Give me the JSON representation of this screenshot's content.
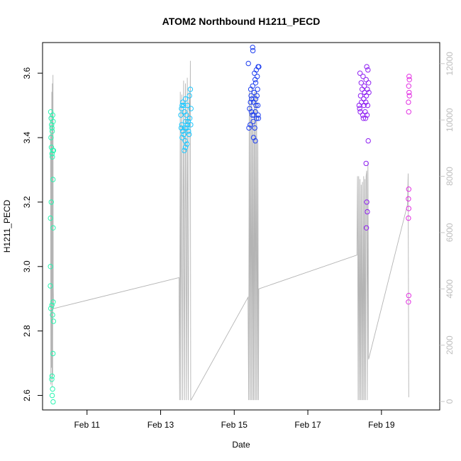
{
  "chart_data": {
    "type": "scatter",
    "title": "ATOM2 Northbound H1211_PECD",
    "xlabel": "Date",
    "ylabel": "H1211_PECD",
    "xlim": [
      "2025-02-09 19:00",
      "2025-02-20 14:00"
    ],
    "ylim_left": [
      2.555,
      3.695
    ],
    "ylim_right": [
      -300,
      12750
    ],
    "x_ticks": [
      {
        "date": "2025-02-11",
        "label": "Feb 11"
      },
      {
        "date": "2025-02-13",
        "label": "Feb 13"
      },
      {
        "date": "2025-02-15",
        "label": "Feb 15"
      },
      {
        "date": "2025-02-17",
        "label": "Feb 17"
      },
      {
        "date": "2025-02-19",
        "label": "Feb 19"
      }
    ],
    "y_ticks_left": [
      "2.6",
      "2.8",
      "3.0",
      "3.2",
      "3.4",
      "3.6"
    ],
    "y_ticks_right": [
      "0",
      "2000",
      "4000",
      "6000",
      "8000",
      "10000",
      "12000"
    ],
    "grid": false,
    "legend": "none",
    "colors": {
      "right_axis": "#c8c8c8",
      "line": "#b4b4b4",
      "points": [
        "#29f5b1",
        "#1ec8ff",
        "#1e3ff0",
        "#8f1ff2",
        "#e22fe2"
      ]
    },
    "clusters": [
      {
        "color_index": 0,
        "points": [
          [
            "2025-02-10 00:18",
            3.48
          ],
          [
            "2025-02-10 00:36",
            3.46
          ],
          [
            "2025-02-10 00:54",
            3.44
          ],
          [
            "2025-02-10 01:06",
            3.43
          ],
          [
            "2025-02-10 01:18",
            3.42
          ],
          [
            "2025-02-10 00:30",
            3.4
          ],
          [
            "2025-02-10 00:48",
            3.37
          ],
          [
            "2025-02-10 01:12",
            3.35
          ],
          [
            "2025-02-10 01:24",
            3.34
          ],
          [
            "2025-02-10 01:42",
            3.36
          ],
          [
            "2025-02-10 02:06",
            3.36
          ],
          [
            "2025-02-10 01:36",
            3.47
          ],
          [
            "2025-02-10 01:54",
            3.45
          ],
          [
            "2025-02-10 01:48",
            3.27
          ],
          [
            "2025-02-10 00:42",
            3.2
          ],
          [
            "2025-02-10 00:12",
            3.15
          ],
          [
            "2025-02-10 01:54",
            3.12
          ],
          [
            "2025-02-10 00:12",
            3.0
          ],
          [
            "2025-02-10 00:06",
            2.94
          ],
          [
            "2025-02-10 00:24",
            2.87
          ],
          [
            "2025-02-10 01:06",
            2.88
          ],
          [
            "2025-02-10 01:30",
            2.85
          ],
          [
            "2025-02-10 01:54",
            2.89
          ],
          [
            "2025-02-10 02:06",
            2.83
          ],
          [
            "2025-02-10 01:48",
            2.73
          ],
          [
            "2025-02-10 01:12",
            2.66
          ],
          [
            "2025-02-10 01:00",
            2.65
          ],
          [
            "2025-02-10 01:30",
            2.62
          ],
          [
            "2025-02-10 01:18",
            2.6
          ],
          [
            "2025-02-10 01:54",
            2.58
          ]
        ]
      },
      {
        "color_index": 1,
        "points": [
          [
            "2025-02-13 13:12",
            3.47
          ],
          [
            "2025-02-13 13:36",
            3.49
          ],
          [
            "2025-02-13 14:00",
            3.5
          ],
          [
            "2025-02-13 14:24",
            3.51
          ],
          [
            "2025-02-13 15:00",
            3.5
          ],
          [
            "2025-02-13 15:36",
            3.48
          ],
          [
            "2025-02-13 16:12",
            3.52
          ],
          [
            "2025-02-13 16:48",
            3.47
          ],
          [
            "2025-02-13 17:24",
            3.5
          ],
          [
            "2025-02-13 18:00",
            3.45
          ],
          [
            "2025-02-13 18:48",
            3.53
          ],
          [
            "2025-02-13 19:24",
            3.55
          ],
          [
            "2025-02-13 19:48",
            3.49
          ],
          [
            "2025-02-13 13:24",
            3.43
          ],
          [
            "2025-02-13 13:48",
            3.44
          ],
          [
            "2025-02-13 14:24",
            3.42
          ],
          [
            "2025-02-13 15:12",
            3.41
          ],
          [
            "2025-02-13 15:48",
            3.43
          ],
          [
            "2025-02-13 16:24",
            3.45
          ],
          [
            "2025-02-13 17:00",
            3.43
          ],
          [
            "2025-02-13 17:36",
            3.44
          ],
          [
            "2025-02-13 18:12",
            3.42
          ],
          [
            "2025-02-13 18:36",
            3.41
          ],
          [
            "2025-02-13 19:00",
            3.46
          ],
          [
            "2025-02-13 19:36",
            3.44
          ],
          [
            "2025-02-13 14:00",
            3.4
          ],
          [
            "2025-02-13 16:00",
            3.39
          ],
          [
            "2025-02-13 17:12",
            3.38
          ],
          [
            "2025-02-13 15:24",
            3.36
          ],
          [
            "2025-02-13 16:12",
            3.37
          ]
        ]
      },
      {
        "color_index": 2,
        "points": [
          [
            "2025-02-15 09:12",
            3.63
          ],
          [
            "2025-02-15 12:00",
            3.68
          ],
          [
            "2025-02-15 12:12",
            3.67
          ],
          [
            "2025-02-15 15:36",
            3.62
          ],
          [
            "2025-02-15 16:00",
            3.62
          ],
          [
            "2025-02-15 14:24",
            3.61
          ],
          [
            "2025-02-15 13:12",
            3.6
          ],
          [
            "2025-02-15 15:00",
            3.59
          ],
          [
            "2025-02-15 13:36",
            3.58
          ],
          [
            "2025-02-15 14:00",
            3.57
          ],
          [
            "2025-02-15 12:00",
            3.56
          ],
          [
            "2025-02-15 10:48",
            3.55
          ],
          [
            "2025-02-15 13:00",
            3.54
          ],
          [
            "2025-02-15 14:48",
            3.53
          ],
          [
            "2025-02-15 11:24",
            3.52
          ],
          [
            "2025-02-15 12:36",
            3.51
          ],
          [
            "2025-02-15 15:24",
            3.5
          ],
          [
            "2025-02-15 10:00",
            3.49
          ],
          [
            "2025-02-15 13:48",
            3.48
          ],
          [
            "2025-02-15 11:48",
            3.47
          ],
          [
            "2025-02-15 14:36",
            3.46
          ],
          [
            "2025-02-15 12:24",
            3.45
          ],
          [
            "2025-02-15 15:48",
            3.46
          ],
          [
            "2025-02-15 10:24",
            3.44
          ],
          [
            "2025-02-15 13:24",
            3.43
          ],
          [
            "2025-02-15 09:36",
            3.43
          ],
          [
            "2025-02-15 12:48",
            3.47
          ],
          [
            "2025-02-15 14:12",
            3.5
          ],
          [
            "2025-02-15 11:00",
            3.53
          ],
          [
            "2025-02-15 15:12",
            3.55
          ],
          [
            "2025-02-15 12:36",
            3.4
          ],
          [
            "2025-02-15 13:48",
            3.39
          ],
          [
            "2025-02-15 11:12",
            3.48
          ],
          [
            "2025-02-15 10:36",
            3.51
          ],
          [
            "2025-02-15 14:00",
            3.52
          ],
          [
            "2025-02-15 15:36",
            3.47
          ]
        ]
      },
      {
        "color_index": 3,
        "points": [
          [
            "2025-02-18 10:00",
            3.6
          ],
          [
            "2025-02-18 12:00",
            3.59
          ],
          [
            "2025-02-18 14:24",
            3.62
          ],
          [
            "2025-02-18 15:12",
            3.61
          ],
          [
            "2025-02-18 10:48",
            3.57
          ],
          [
            "2025-02-18 12:48",
            3.56
          ],
          [
            "2025-02-18 14:00",
            3.58
          ],
          [
            "2025-02-18 15:36",
            3.57
          ],
          [
            "2025-02-18 11:24",
            3.55
          ],
          [
            "2025-02-18 13:00",
            3.54
          ],
          [
            "2025-02-18 14:48",
            3.55
          ],
          [
            "2025-02-18 10:24",
            3.53
          ],
          [
            "2025-02-18 12:24",
            3.52
          ],
          [
            "2025-02-18 14:12",
            3.53
          ],
          [
            "2025-02-18 15:48",
            3.54
          ],
          [
            "2025-02-18 09:24",
            3.5
          ],
          [
            "2025-02-18 09:48",
            3.49
          ],
          [
            "2025-02-18 11:00",
            3.51
          ],
          [
            "2025-02-18 12:36",
            3.5
          ],
          [
            "2025-02-18 13:48",
            3.51
          ],
          [
            "2025-02-18 15:00",
            3.5
          ],
          [
            "2025-02-18 10:12",
            3.48
          ],
          [
            "2025-02-18 11:48",
            3.47
          ],
          [
            "2025-02-18 13:24",
            3.48
          ],
          [
            "2025-02-18 14:36",
            3.47
          ],
          [
            "2025-02-18 12:12",
            3.46
          ],
          [
            "2025-02-18 13:36",
            3.46
          ],
          [
            "2025-02-18 15:24",
            3.39
          ],
          [
            "2025-02-18 14:00",
            3.32
          ],
          [
            "2025-02-18 14:24",
            3.2
          ],
          [
            "2025-02-18 14:48",
            3.17
          ],
          [
            "2025-02-18 14:12",
            3.12
          ]
        ]
      },
      {
        "color_index": 4,
        "points": [
          [
            "2025-02-19 18:00",
            3.59
          ],
          [
            "2025-02-19 18:12",
            3.58
          ],
          [
            "2025-02-19 17:48",
            3.56
          ],
          [
            "2025-02-19 18:00",
            3.54
          ],
          [
            "2025-02-19 17:36",
            3.51
          ],
          [
            "2025-02-19 18:12",
            3.53
          ],
          [
            "2025-02-19 17:48",
            3.48
          ],
          [
            "2025-02-19 17:48",
            3.24
          ],
          [
            "2025-02-19 17:36",
            3.21
          ],
          [
            "2025-02-19 17:48",
            3.18
          ],
          [
            "2025-02-19 17:36",
            3.15
          ],
          [
            "2025-02-19 17:48",
            2.91
          ],
          [
            "2025-02-19 17:36",
            2.89
          ]
        ]
      }
    ],
    "series_right_axis": [
      [
        "2025-02-10 00:00",
        10200
      ],
      [
        "2025-02-10 00:12",
        9800
      ],
      [
        "2025-02-10 00:24",
        600
      ],
      [
        "2025-02-10 00:36",
        9500
      ],
      [
        "2025-02-10 00:48",
        1200
      ],
      [
        "2025-02-10 01:00",
        11000
      ],
      [
        "2025-02-10 01:12",
        500
      ],
      [
        "2025-02-10 01:24",
        11300
      ],
      [
        "2025-02-10 01:36",
        900
      ],
      [
        "2025-02-10 01:48",
        11600
      ],
      [
        "2025-02-10 02:00",
        4100
      ],
      [
        "2025-02-10 02:12",
        3300
      ],
      [
        "2025-02-13 12:00",
        4400
      ],
      [
        "2025-02-13 12:24",
        50
      ],
      [
        "2025-02-13 12:48",
        11000
      ],
      [
        "2025-02-13 13:12",
        50
      ],
      [
        "2025-02-13 13:48",
        10900
      ],
      [
        "2025-02-13 14:24",
        50
      ],
      [
        "2025-02-13 15:00",
        11400
      ],
      [
        "2025-02-13 15:36",
        50
      ],
      [
        "2025-02-13 16:12",
        11300
      ],
      [
        "2025-02-13 16:48",
        50
      ],
      [
        "2025-02-13 17:24",
        11500
      ],
      [
        "2025-02-13 18:00",
        50
      ],
      [
        "2025-02-13 18:36",
        11000
      ],
      [
        "2025-02-13 19:12",
        10000
      ],
      [
        "2025-02-13 19:24",
        12100
      ],
      [
        "2025-02-13 19:36",
        50
      ],
      [
        "2025-02-13 19:48",
        50
      ],
      [
        "2025-02-15 09:00",
        3700
      ],
      [
        "2025-02-15 09:24",
        50
      ],
      [
        "2025-02-15 09:48",
        11000
      ],
      [
        "2025-02-15 10:12",
        50
      ],
      [
        "2025-02-15 10:36",
        10600
      ],
      [
        "2025-02-15 11:00",
        50
      ],
      [
        "2025-02-15 11:24",
        11200
      ],
      [
        "2025-02-15 11:48",
        50
      ],
      [
        "2025-02-15 12:12",
        10000
      ],
      [
        "2025-02-15 12:36",
        50
      ],
      [
        "2025-02-15 13:00",
        11000
      ],
      [
        "2025-02-15 13:24",
        50
      ],
      [
        "2025-02-15 13:48",
        11100
      ],
      [
        "2025-02-15 14:12",
        50
      ],
      [
        "2025-02-15 14:36",
        11000
      ],
      [
        "2025-02-15 15:00",
        50
      ],
      [
        "2025-02-15 15:24",
        9200
      ],
      [
        "2025-02-15 15:48",
        50
      ],
      [
        "2025-02-15 16:00",
        4000
      ],
      [
        "2025-02-18 08:00",
        5200
      ],
      [
        "2025-02-18 08:24",
        8000
      ],
      [
        "2025-02-18 08:48",
        50
      ],
      [
        "2025-02-18 09:12",
        8000
      ],
      [
        "2025-02-18 09:36",
        50
      ],
      [
        "2025-02-18 10:00",
        7900
      ],
      [
        "2025-02-18 10:24",
        50
      ],
      [
        "2025-02-18 10:48",
        7700
      ],
      [
        "2025-02-18 11:12",
        50
      ],
      [
        "2025-02-18 11:36",
        7800
      ],
      [
        "2025-02-18 12:00",
        50
      ],
      [
        "2025-02-18 12:24",
        8000
      ],
      [
        "2025-02-18 12:48",
        50
      ],
      [
        "2025-02-18 13:12",
        7900
      ],
      [
        "2025-02-18 13:36",
        50
      ],
      [
        "2025-02-18 14:00",
        8000
      ],
      [
        "2025-02-18 14:24",
        8200
      ],
      [
        "2025-02-18 14:48",
        50
      ],
      [
        "2025-02-18 15:12",
        8500
      ],
      [
        "2025-02-18 15:36",
        1500
      ],
      [
        "2025-02-19 17:00",
        7000
      ],
      [
        "2025-02-19 17:24",
        8100
      ],
      [
        "2025-02-19 17:48",
        150
      ]
    ]
  }
}
